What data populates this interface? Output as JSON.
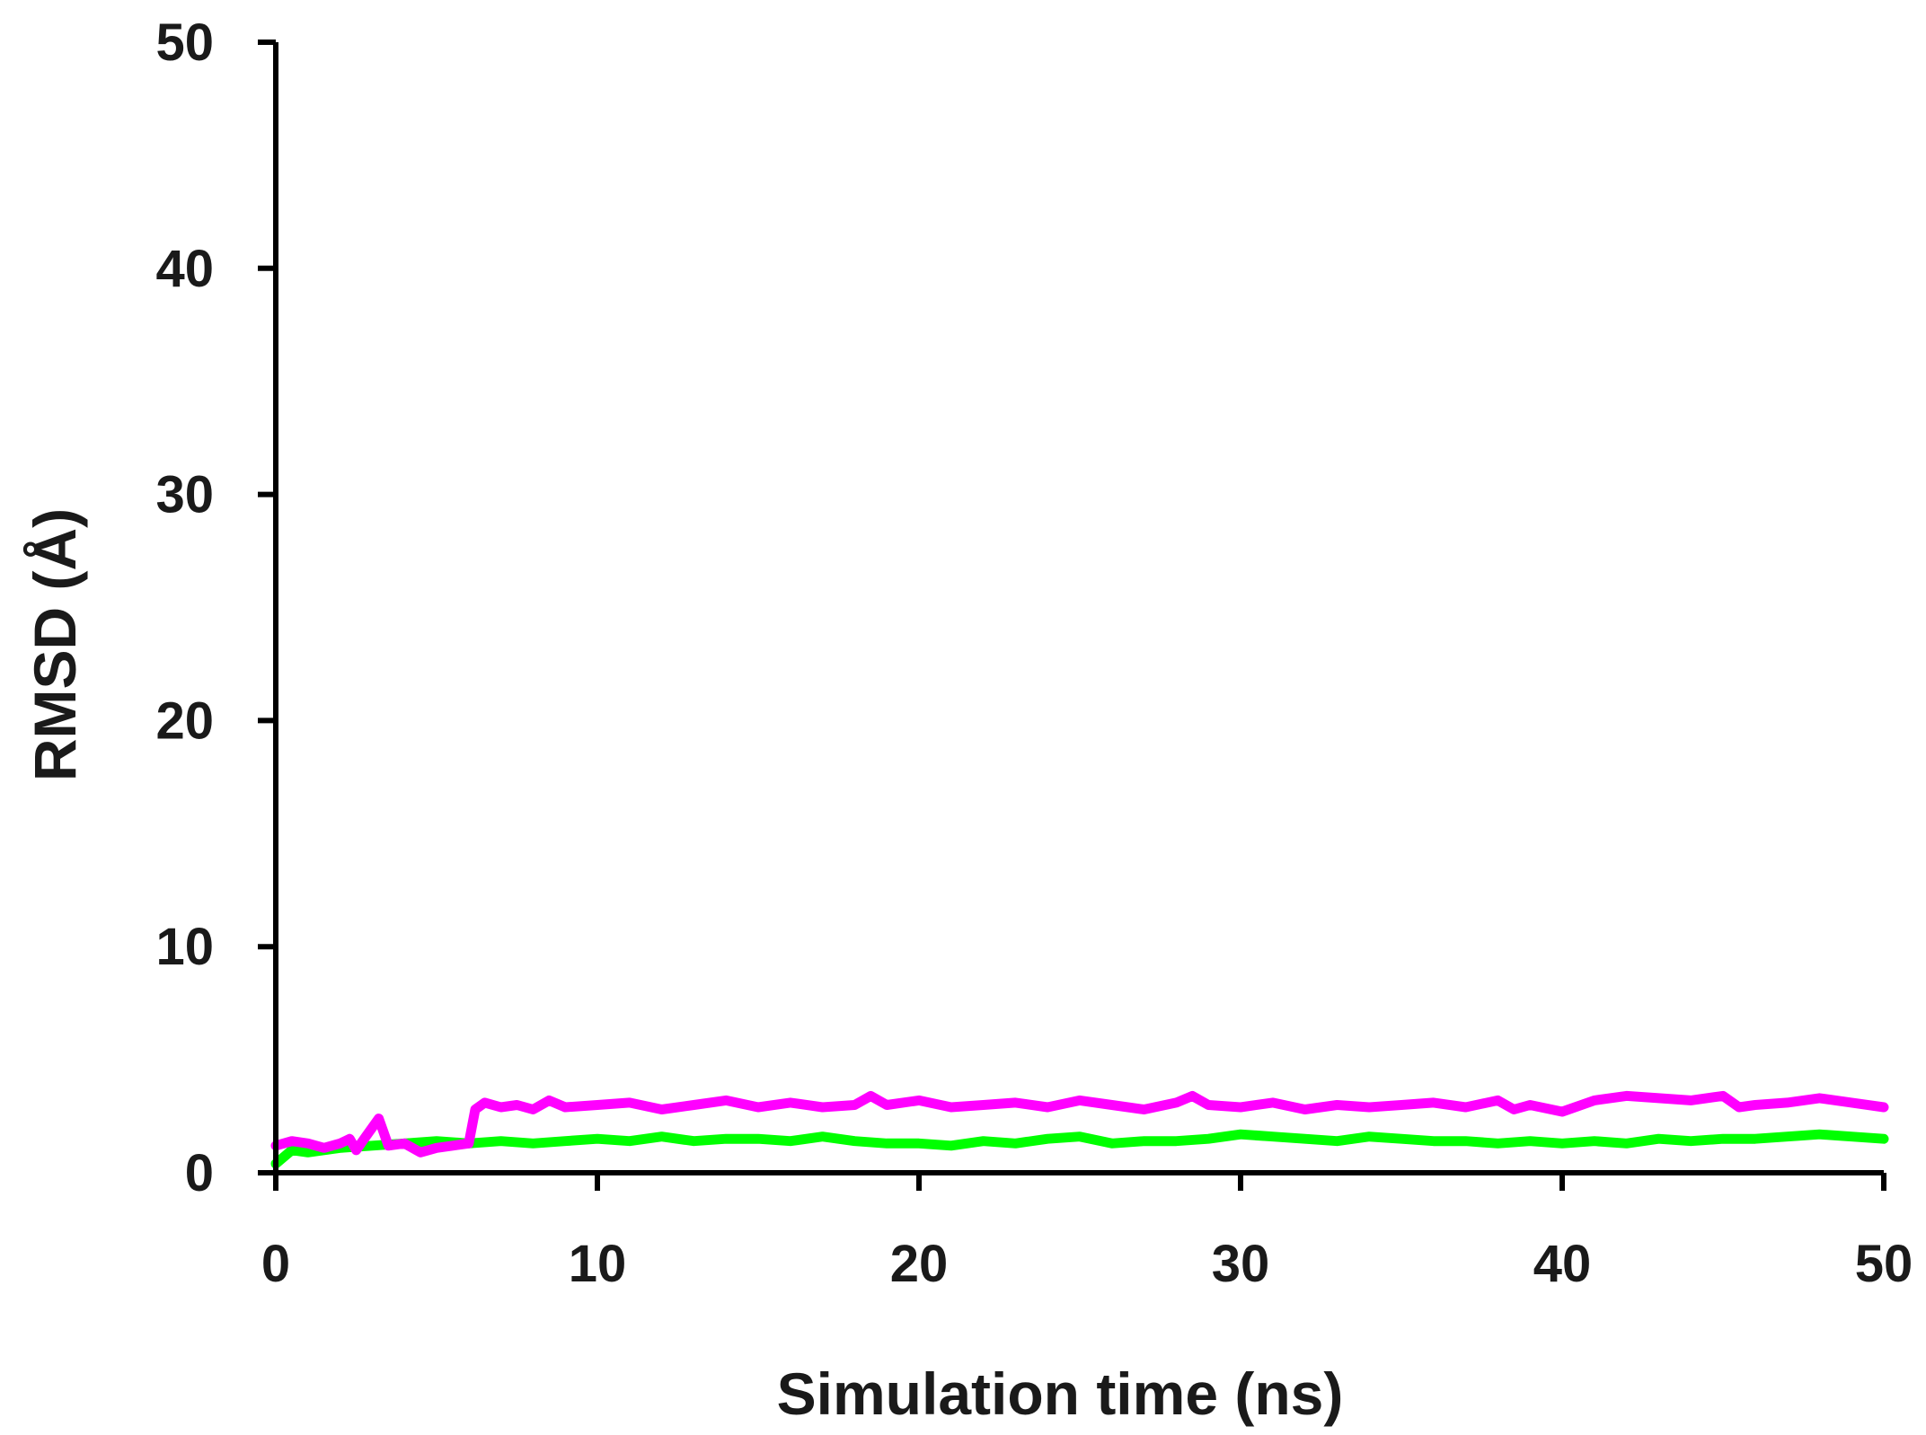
{
  "chart_data": {
    "type": "line",
    "title": "",
    "xlabel": "Simulation time (ns)",
    "ylabel": "RMSD (Å)",
    "xlim": [
      0,
      50
    ],
    "ylim": [
      0,
      50
    ],
    "x_ticks": [
      "0",
      "10",
      "20",
      "30",
      "40",
      "50"
    ],
    "y_ticks": [
      "0",
      "10",
      "20",
      "30",
      "40",
      "50"
    ],
    "grid": false,
    "legend": "none",
    "series": [
      {
        "color": "#ff00ff",
        "x": [
          0,
          0.5,
          1,
          1.5,
          2,
          2.3,
          2.5,
          2.8,
          3.2,
          3.5,
          4,
          4.5,
          5,
          5.5,
          6,
          6.2,
          6.5,
          7,
          7.5,
          8,
          8.5,
          9,
          10,
          11,
          12,
          13,
          14,
          15,
          16,
          17,
          18,
          18.5,
          19,
          20,
          21,
          22,
          23,
          24,
          25,
          26,
          27,
          28,
          28.5,
          29,
          30,
          31,
          32,
          33,
          34,
          35,
          36,
          37,
          38,
          38.5,
          39,
          40,
          41,
          42,
          43,
          44,
          45,
          45.5,
          46,
          47,
          48,
          49,
          50
        ],
        "y": [
          1.2,
          1.4,
          1.3,
          1.1,
          1.3,
          1.5,
          1.0,
          1.6,
          2.4,
          1.2,
          1.3,
          0.9,
          1.1,
          1.2,
          1.3,
          2.8,
          3.1,
          2.9,
          3.0,
          2.8,
          3.2,
          2.9,
          3.0,
          3.1,
          2.8,
          3.0,
          3.2,
          2.9,
          3.1,
          2.9,
          3.0,
          3.4,
          3.0,
          3.2,
          2.9,
          3.0,
          3.1,
          2.9,
          3.2,
          3.0,
          2.8,
          3.1,
          3.4,
          3.0,
          2.9,
          3.1,
          2.8,
          3.0,
          2.9,
          3.0,
          3.1,
          2.9,
          3.2,
          2.8,
          3.0,
          2.7,
          3.2,
          3.4,
          3.3,
          3.2,
          3.4,
          2.9,
          3.0,
          3.1,
          3.3,
          3.1,
          2.9
        ]
      },
      {
        "color": "#00ff00",
        "x": [
          0,
          0.5,
          1,
          2,
          3,
          4,
          5,
          6,
          7,
          8,
          9,
          10,
          11,
          12,
          13,
          14,
          15,
          16,
          17,
          18,
          19,
          20,
          21,
          22,
          23,
          24,
          25,
          26,
          27,
          28,
          29,
          30,
          31,
          32,
          33,
          34,
          35,
          36,
          37,
          38,
          39,
          40,
          41,
          42,
          43,
          44,
          45,
          46,
          47,
          48,
          49,
          50
        ],
        "y": [
          0.4,
          1.0,
          0.9,
          1.1,
          1.2,
          1.3,
          1.4,
          1.3,
          1.4,
          1.3,
          1.4,
          1.5,
          1.4,
          1.6,
          1.4,
          1.5,
          1.5,
          1.4,
          1.6,
          1.4,
          1.3,
          1.3,
          1.2,
          1.4,
          1.3,
          1.5,
          1.6,
          1.3,
          1.4,
          1.4,
          1.5,
          1.7,
          1.6,
          1.5,
          1.4,
          1.6,
          1.5,
          1.4,
          1.4,
          1.3,
          1.4,
          1.3,
          1.4,
          1.3,
          1.5,
          1.4,
          1.5,
          1.5,
          1.6,
          1.7,
          1.6,
          1.5
        ]
      }
    ]
  }
}
